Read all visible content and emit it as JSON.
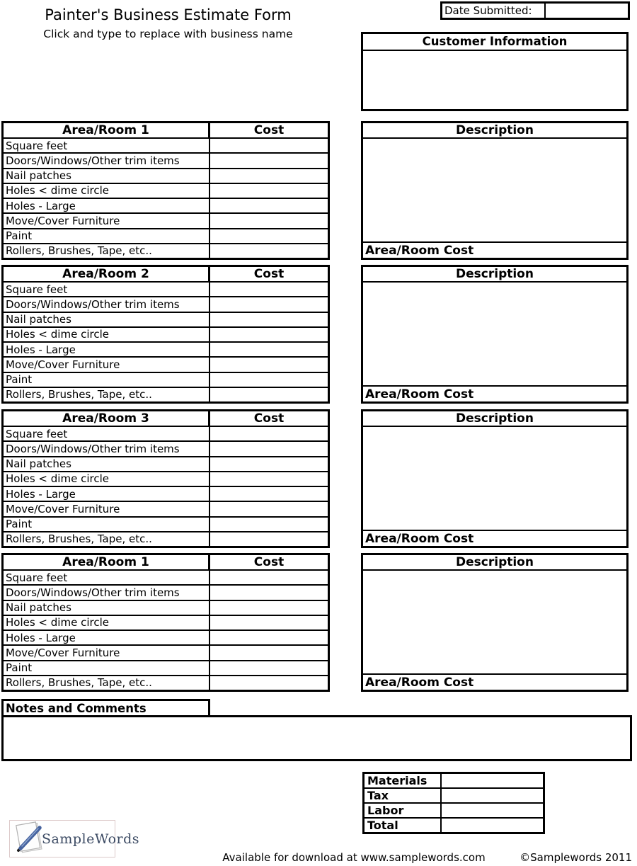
{
  "colors": {
    "border": "#000000",
    "background": "#ffffff",
    "logo_text": "#3b4a63",
    "logo_pen": "#46639f",
    "logo_box_border": "#dcc9c9"
  },
  "header": {
    "title": "Painter's Business Estimate Form",
    "subtitle": "Click and type to replace with business name",
    "date_submitted": {
      "label": "Date Submitted:",
      "value": ""
    }
  },
  "customer_information": {
    "title": "Customer Information",
    "content": ""
  },
  "room_tables": [
    {
      "title": "Area/Room 1",
      "cost_header": "Cost",
      "rows": [
        {
          "label": "Square feet",
          "cost": ""
        },
        {
          "label": "Doors/Windows/Other trim items",
          "cost": ""
        },
        {
          "label": "Nail patches",
          "cost": ""
        },
        {
          "label": "Holes < dime circle",
          "cost": ""
        },
        {
          "label": "Holes - Large",
          "cost": ""
        },
        {
          "label": "Move/Cover Furniture",
          "cost": ""
        },
        {
          "label": "Paint",
          "cost": ""
        },
        {
          "label": "Rollers, Brushes, Tape, etc..",
          "cost": ""
        }
      ],
      "description": {
        "title": "Description",
        "content": "",
        "footer_label": "Area/Room Cost",
        "footer_value": ""
      }
    },
    {
      "title": "Area/Room 2",
      "cost_header": "Cost",
      "rows": [
        {
          "label": "Square feet",
          "cost": ""
        },
        {
          "label": "Doors/Windows/Other trim items",
          "cost": ""
        },
        {
          "label": "Nail patches",
          "cost": ""
        },
        {
          "label": "Holes < dime circle",
          "cost": ""
        },
        {
          "label": "Holes - Large",
          "cost": ""
        },
        {
          "label": "Move/Cover Furniture",
          "cost": ""
        },
        {
          "label": "Paint",
          "cost": ""
        },
        {
          "label": "Rollers, Brushes, Tape, etc..",
          "cost": ""
        }
      ],
      "description": {
        "title": "Description",
        "content": "",
        "footer_label": "Area/Room Cost",
        "footer_value": ""
      }
    },
    {
      "title": "Area/Room 3",
      "cost_header": "Cost",
      "rows": [
        {
          "label": "Square feet",
          "cost": ""
        },
        {
          "label": "Doors/Windows/Other trim items",
          "cost": ""
        },
        {
          "label": "Nail patches",
          "cost": ""
        },
        {
          "label": "Holes < dime circle",
          "cost": ""
        },
        {
          "label": "Holes - Large",
          "cost": ""
        },
        {
          "label": "Move/Cover Furniture",
          "cost": ""
        },
        {
          "label": "Paint",
          "cost": ""
        },
        {
          "label": "Rollers, Brushes, Tape, etc..",
          "cost": ""
        }
      ],
      "description": {
        "title": "Description",
        "content": "",
        "footer_label": "Area/Room Cost",
        "footer_value": ""
      }
    },
    {
      "title": "Area/Room 1",
      "cost_header": "Cost",
      "rows": [
        {
          "label": "Square feet",
          "cost": ""
        },
        {
          "label": "Doors/Windows/Other trim items",
          "cost": ""
        },
        {
          "label": "Nail patches",
          "cost": ""
        },
        {
          "label": "Holes < dime circle",
          "cost": ""
        },
        {
          "label": "Holes - Large",
          "cost": ""
        },
        {
          "label": "Move/Cover Furniture",
          "cost": ""
        },
        {
          "label": "Paint",
          "cost": ""
        },
        {
          "label": "Rollers, Brushes, Tape, etc..",
          "cost": ""
        }
      ],
      "description": {
        "title": "Description",
        "content": "",
        "footer_label": "Area/Room Cost",
        "footer_value": ""
      }
    }
  ],
  "notes": {
    "title": "Notes and Comments",
    "content": ""
  },
  "totals": {
    "rows": [
      {
        "label": "Materials",
        "value": ""
      },
      {
        "label": "Tax",
        "value": ""
      },
      {
        "label": "Labor",
        "value": ""
      },
      {
        "label": "Total",
        "value": ""
      }
    ]
  },
  "footer": {
    "logo_text": "SampleWords",
    "download_text": "Available for download at www.samplewords.com",
    "copyright": "©Samplewords 2011"
  }
}
